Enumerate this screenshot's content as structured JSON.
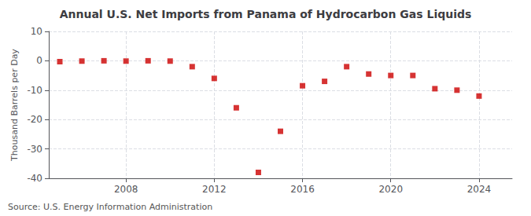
{
  "chart_data": {
    "type": "scatter",
    "title": "Annual U.S. Net Imports from Panama of Hydrocarbon Gas Liquids",
    "ylabel": "Thousand Barrels per Day",
    "source": "Source: U.S. Energy Information Administration",
    "x": [
      2005,
      2006,
      2007,
      2008,
      2009,
      2010,
      2011,
      2012,
      2013,
      2014,
      2015,
      2016,
      2017,
      2018,
      2019,
      2020,
      2021,
      2022,
      2023,
      2024
    ],
    "values": [
      -0.3,
      -0.1,
      0.0,
      -0.1,
      0.0,
      -0.1,
      -2.0,
      -6.0,
      -16.0,
      -38.0,
      -24.0,
      -8.5,
      -7.0,
      -2.0,
      -4.5,
      -5.0,
      -5.0,
      -9.5,
      -10.0,
      -12.0
    ],
    "color": "#cc0000",
    "marker": "square",
    "xlim": [
      2004.5,
      2025.5
    ],
    "xticks": [
      2008,
      2012,
      2016,
      2020,
      2024
    ],
    "ylim": [
      -40,
      10
    ],
    "yticks": [
      -40,
      -30,
      -20,
      -10,
      0,
      10
    ],
    "grid": true
  }
}
